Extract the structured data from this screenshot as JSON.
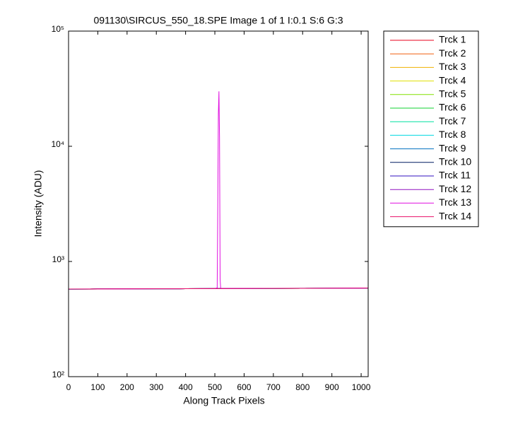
{
  "chart_data": {
    "type": "line",
    "title": "091130\\SIRCUS_550_18.SPE  Image 1 of 1  I:0.1  S:6  G:3",
    "x_label": "Along Track Pixels",
    "y_label": "Intensity (ADU)",
    "log_y": true,
    "legend": "outside-right",
    "xlim": [
      0,
      1024
    ],
    "xticks": [
      0,
      100,
      200,
      300,
      400,
      500,
      600,
      700,
      800,
      900,
      1000
    ],
    "ylim": [
      100,
      100000
    ],
    "yticks": [
      {
        "value": 100,
        "label": "10²"
      },
      {
        "value": 1000,
        "label": "10³"
      },
      {
        "value": 10000,
        "label": "10⁴"
      },
      {
        "value": 100000,
        "label": "10⁵"
      }
    ],
    "x": [
      0,
      100,
      200,
      300,
      400,
      500,
      508,
      510,
      512,
      514,
      516,
      518,
      520,
      600,
      700,
      800,
      900,
      1000,
      1024
    ],
    "series": [
      {
        "name": "Trck 1",
        "color": "#e8001c",
        "values": [
          575,
          577,
          578,
          579,
          580,
          582,
          582,
          582,
          582,
          582,
          582,
          582,
          582,
          583,
          584,
          585,
          586,
          587,
          588
        ]
      },
      {
        "name": "Trck 2",
        "color": "#f06010",
        "values": [
          576,
          577,
          578,
          580,
          581,
          582,
          582,
          582,
          582,
          582,
          582,
          582,
          582,
          583,
          584,
          585,
          586,
          587,
          588
        ]
      },
      {
        "name": "Trck 3",
        "color": "#f0b000",
        "values": [
          575,
          576,
          578,
          579,
          580,
          581,
          582,
          582,
          582,
          582,
          582,
          582,
          582,
          583,
          584,
          585,
          586,
          587,
          588
        ]
      },
      {
        "name": "Trck 4",
        "color": "#e0e000",
        "values": [
          576,
          577,
          578,
          579,
          581,
          582,
          582,
          582,
          582,
          582,
          582,
          582,
          582,
          583,
          584,
          585,
          586,
          587,
          589
        ]
      },
      {
        "name": "Trck 5",
        "color": "#80e000",
        "values": [
          575,
          577,
          579,
          579,
          580,
          582,
          582,
          582,
          582,
          582,
          582,
          582,
          582,
          583,
          584,
          585,
          586,
          588,
          588
        ]
      },
      {
        "name": "Trck 6",
        "color": "#10d030",
        "values": [
          576,
          577,
          578,
          580,
          580,
          582,
          582,
          582,
          582,
          582,
          582,
          582,
          582,
          583,
          584,
          585,
          587,
          587,
          588
        ]
      },
      {
        "name": "Trck 7",
        "color": "#00e0a0",
        "values": [
          575,
          577,
          578,
          579,
          581,
          582,
          582,
          582,
          582,
          582,
          582,
          582,
          582,
          583,
          584,
          586,
          586,
          587,
          588
        ]
      },
      {
        "name": "Trck 8",
        "color": "#00d8e0",
        "values": [
          574,
          576,
          578,
          579,
          580,
          582,
          582,
          582,
          582,
          582,
          582,
          582,
          582,
          583,
          585,
          585,
          586,
          587,
          588
        ]
      },
      {
        "name": "Trck 9",
        "color": "#0070c0",
        "values": [
          575,
          577,
          578,
          579,
          580,
          581,
          582,
          582,
          582,
          582,
          582,
          582,
          582,
          584,
          584,
          585,
          586,
          587,
          588
        ]
      },
      {
        "name": "Trck 10",
        "color": "#001a60",
        "values": [
          576,
          577,
          578,
          579,
          580,
          582,
          582,
          582,
          582,
          582,
          582,
          582,
          582,
          583,
          584,
          585,
          586,
          587,
          588
        ]
      },
      {
        "name": "Trck 11",
        "color": "#3010c0",
        "values": [
          575,
          577,
          578,
          579,
          580,
          582,
          582,
          582,
          582,
          582,
          582,
          582,
          582,
          583,
          584,
          585,
          586,
          587,
          589
        ]
      },
      {
        "name": "Trck 12",
        "color": "#9010c0",
        "values": [
          575,
          576,
          578,
          579,
          580,
          582,
          582,
          582,
          582,
          582,
          582,
          582,
          582,
          583,
          584,
          585,
          586,
          587,
          588
        ]
      },
      {
        "name": "Trck 13",
        "color": "#e010e0",
        "values": [
          576,
          578,
          579,
          580,
          581,
          583,
          590,
          3000,
          19000,
          30000,
          12000,
          700,
          585,
          584,
          585,
          586,
          587,
          588,
          589
        ]
      },
      {
        "name": "Trck 14",
        "color": "#e8106a",
        "values": [
          576,
          577,
          578,
          579,
          580,
          582,
          582,
          582,
          582,
          582,
          582,
          582,
          582,
          583,
          584,
          585,
          586,
          587,
          588
        ]
      }
    ]
  }
}
